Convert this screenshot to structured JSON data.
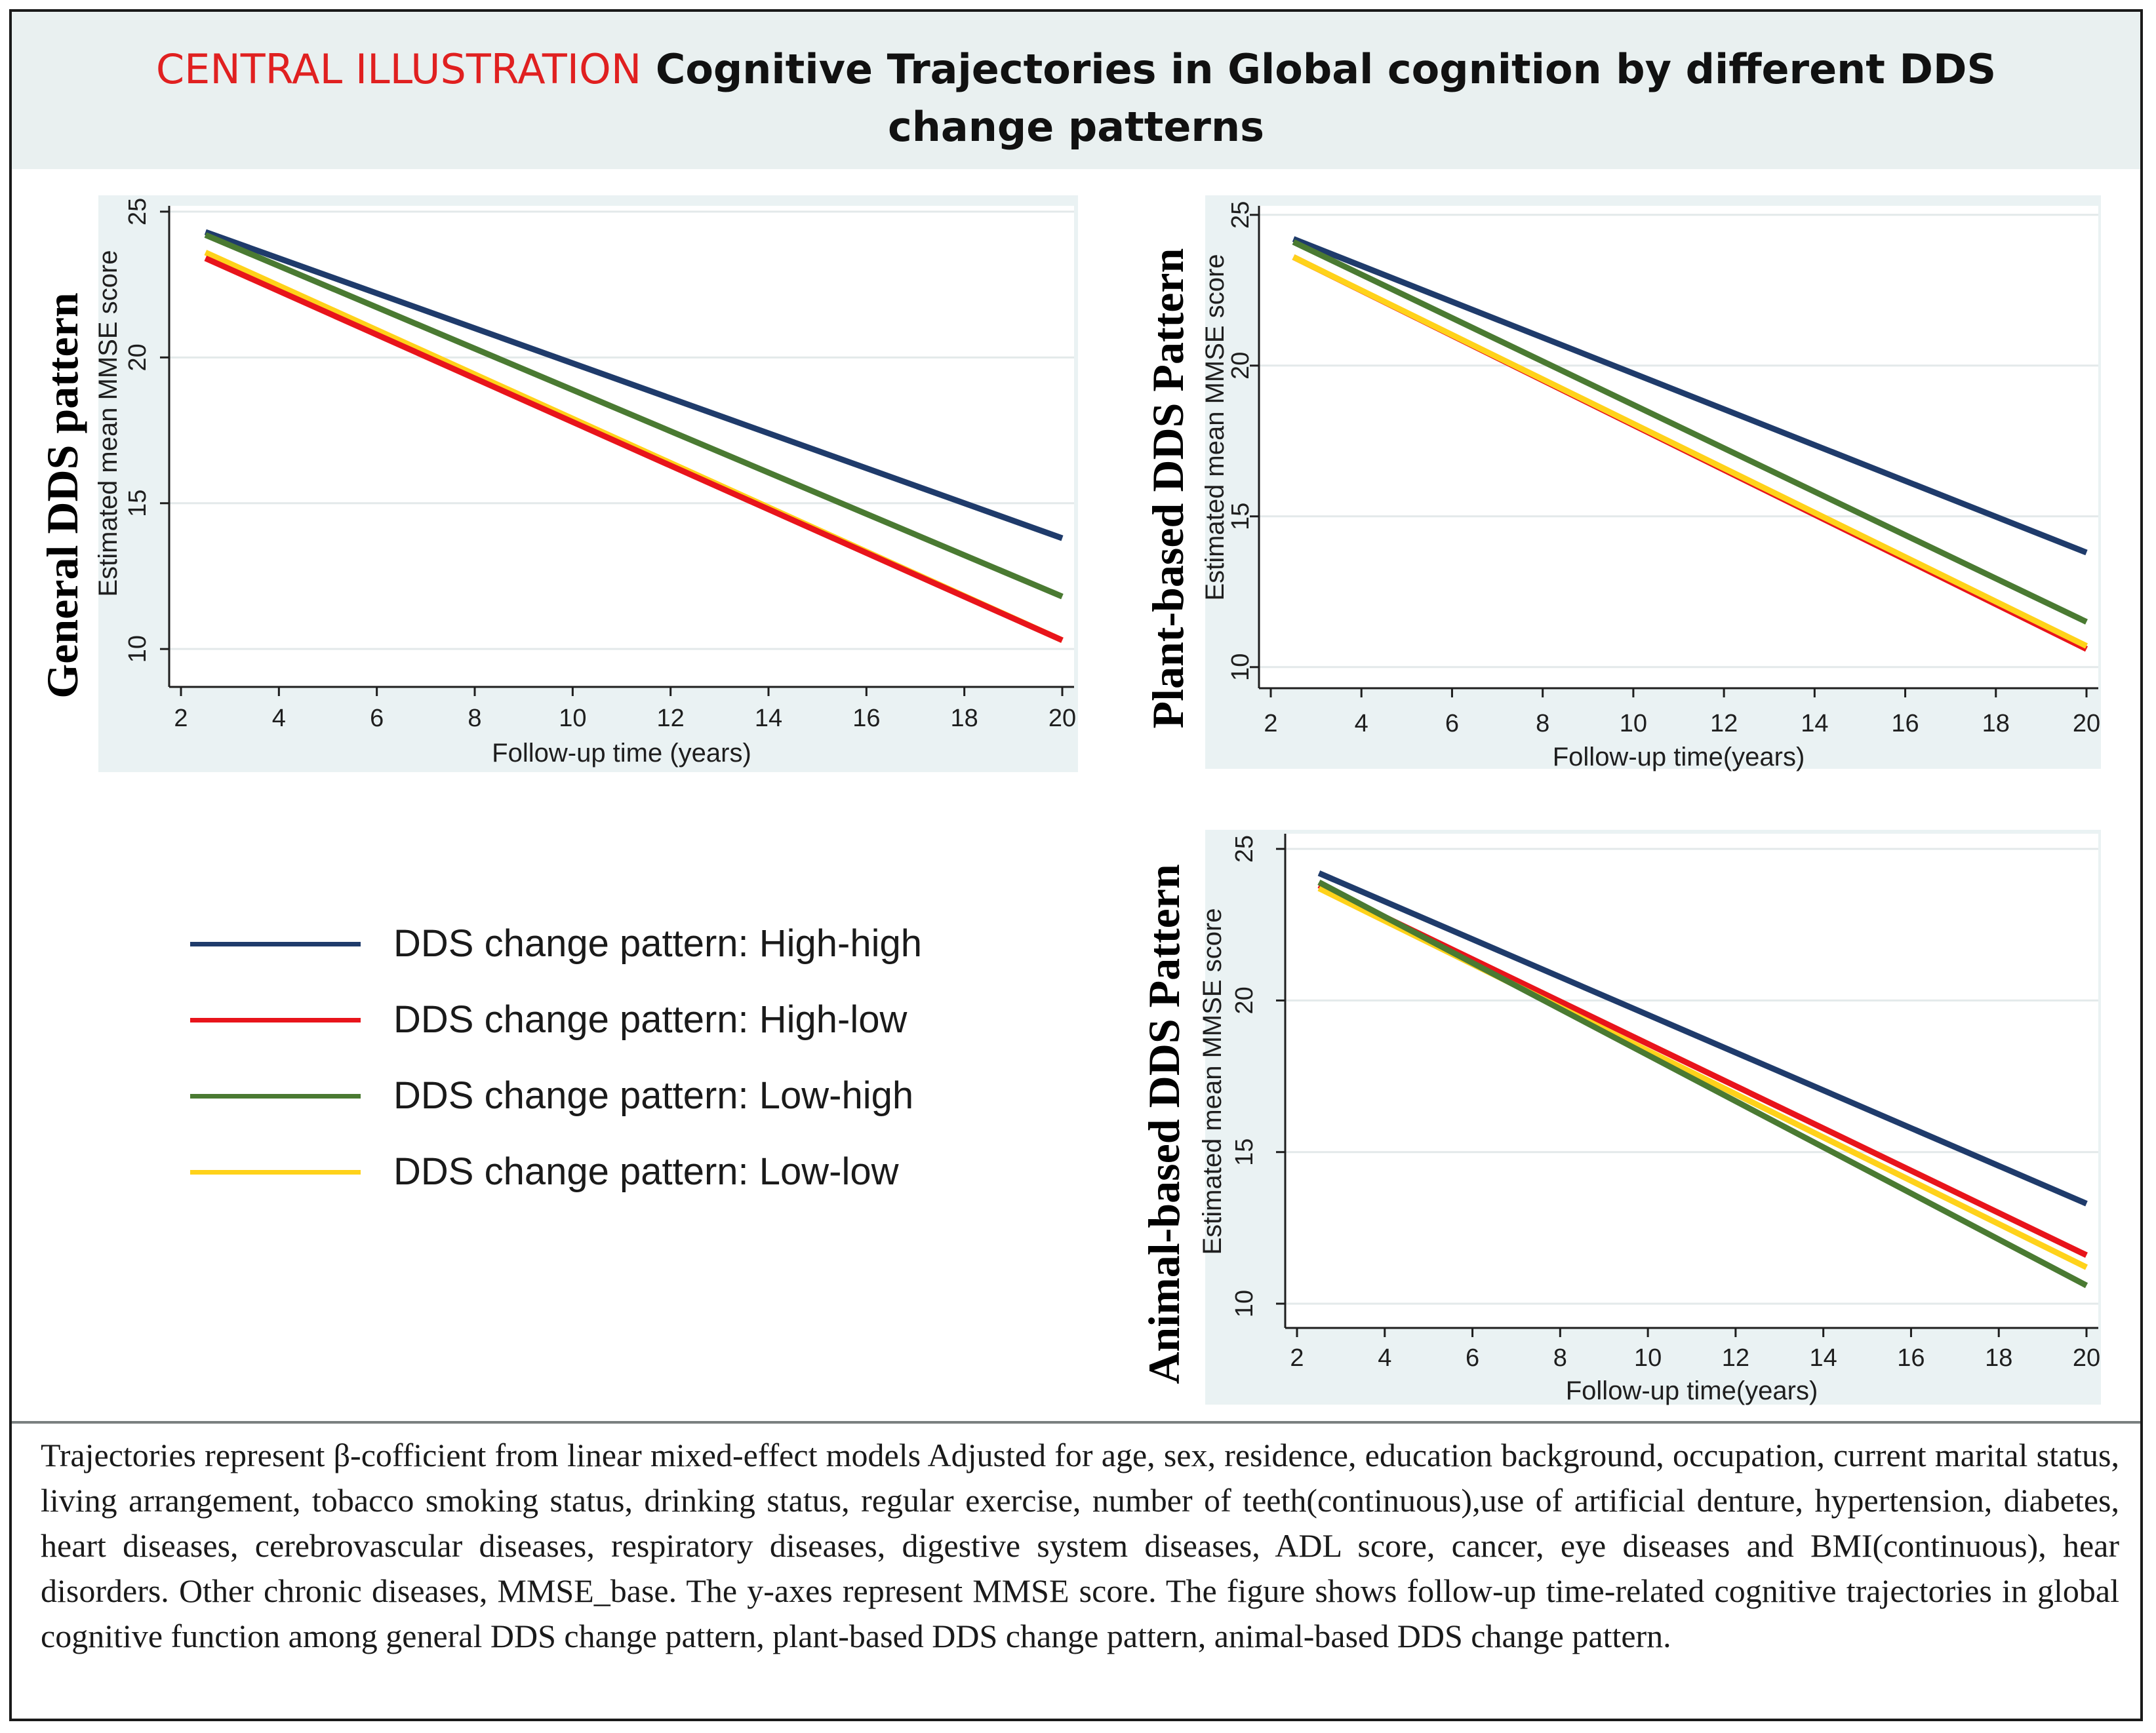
{
  "header": {
    "label": "CENTRAL ILLUSTRATION",
    "title": "Cognitive Trajectories in Global cognition by different DDS change patterns"
  },
  "colors": {
    "high_high": "#1f3b6b",
    "high_low": "#e8141b",
    "low_high": "#4a7a32",
    "low_low": "#ffd21a",
    "accent_red": "#e02020",
    "header_bg": "#e9f0f0"
  },
  "legend": {
    "items": [
      {
        "key": "high_high",
        "label": "DDS change pattern: High-high"
      },
      {
        "key": "high_low",
        "label": "DDS change pattern: High-low"
      },
      {
        "key": "low_high",
        "label": "DDS change pattern: Low-high"
      },
      {
        "key": "low_low",
        "label": "DDS change pattern: Low-low"
      }
    ]
  },
  "chart_data": [
    {
      "type": "line",
      "panel": "general",
      "title": "General DDS pattern",
      "xlabel": "Follow-up time (years)",
      "ylabel": "Estimated mean MMSE score",
      "xlim": [
        2,
        20
      ],
      "ylim": [
        8.7,
        25.2
      ],
      "xticks": [
        2,
        4,
        6,
        8,
        10,
        12,
        14,
        16,
        18,
        20
      ],
      "yticks": [
        10,
        15,
        20,
        25
      ],
      "series": [
        {
          "name": "DDS change pattern: High-high",
          "key": "high_high",
          "x": [
            2.5,
            20
          ],
          "y": [
            24.3,
            13.8
          ]
        },
        {
          "name": "DDS change pattern: Low-high",
          "key": "low_high",
          "x": [
            2.5,
            20
          ],
          "y": [
            24.2,
            11.8
          ]
        },
        {
          "name": "DDS change pattern: Low-low",
          "key": "low_low",
          "x": [
            2.5,
            20
          ],
          "y": [
            23.6,
            10.3
          ]
        },
        {
          "name": "DDS change pattern: High-low",
          "key": "high_low",
          "x": [
            2.5,
            20
          ],
          "y": [
            23.4,
            10.3
          ]
        }
      ]
    },
    {
      "type": "line",
      "panel": "plant",
      "title": "Plant-based DDS Pattern",
      "xlabel": "Follow-up time(years)",
      "ylabel": "Estimated mean MMSE score",
      "xlim": [
        2,
        20
      ],
      "ylim": [
        9.3,
        25.3
      ],
      "xticks": [
        2,
        4,
        6,
        8,
        10,
        12,
        14,
        16,
        18,
        20
      ],
      "yticks": [
        10,
        15,
        20,
        25
      ],
      "series": [
        {
          "name": "DDS change pattern: High-high",
          "key": "high_high",
          "x": [
            2.5,
            20
          ],
          "y": [
            24.2,
            13.8
          ]
        },
        {
          "name": "DDS change pattern: Low-high",
          "key": "low_high",
          "x": [
            2.5,
            20
          ],
          "y": [
            24.1,
            11.5
          ]
        },
        {
          "name": "DDS change pattern: High-low",
          "key": "high_low",
          "x": [
            2.5,
            20
          ],
          "y": [
            23.6,
            10.6
          ]
        },
        {
          "name": "DDS change pattern: Low-low",
          "key": "low_low",
          "x": [
            2.5,
            20
          ],
          "y": [
            23.6,
            10.7
          ]
        }
      ]
    },
    {
      "type": "line",
      "panel": "animal",
      "title": "Animal-based DDS Pattern",
      "xlabel": "Follow-up time(years)",
      "ylabel": "Estimated mean MMSE score",
      "xlim": [
        2,
        20
      ],
      "ylim": [
        9.2,
        25.5
      ],
      "xticks": [
        2,
        4,
        6,
        8,
        10,
        12,
        14,
        16,
        18,
        20
      ],
      "yticks": [
        10,
        15,
        20,
        25
      ],
      "series": [
        {
          "name": "DDS change pattern: High-high",
          "key": "high_high",
          "x": [
            2.5,
            20
          ],
          "y": [
            24.2,
            13.3
          ]
        },
        {
          "name": "DDS change pattern: High-low",
          "key": "high_low",
          "x": [
            2.5,
            20
          ],
          "y": [
            23.8,
            11.6
          ]
        },
        {
          "name": "DDS change pattern: Low-low",
          "key": "low_low",
          "x": [
            2.5,
            20
          ],
          "y": [
            23.7,
            11.2
          ]
        },
        {
          "name": "DDS change pattern: Low-high",
          "key": "low_high",
          "x": [
            2.5,
            20
          ],
          "y": [
            23.9,
            10.6
          ]
        }
      ]
    }
  ],
  "caption": "Trajectories represent β-cofficient from linear mixed-effect models Adjusted for age, sex, residence, education background, occupation, current marital status, living arrangement, tobacco smoking status, drinking status, regular exercise, number of teeth(continuous),use of artificial denture, hypertension, diabetes, heart diseases, cerebrovascular diseases, respiratory diseases, digestive system diseases, ADL score, cancer, eye diseases and BMI(continuous), hear disorders. Other chronic diseases, MMSE_base. The y-axes represent MMSE score. The figure shows follow-up time-related cognitive trajectories in global cognitive function among general DDS change pattern, plant-based DDS change pattern, animal-based DDS change pattern."
}
